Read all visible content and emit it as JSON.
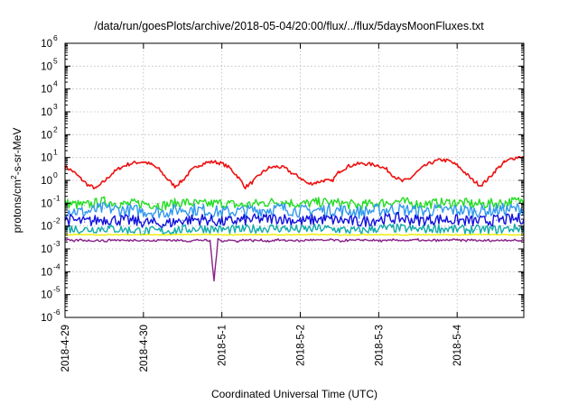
{
  "chart_data": {
    "type": "line",
    "title": "/data/run/goesPlots/archive/2018-05-04/20:00/flux/../flux/5daysMoonFluxes.txt",
    "xlabel": "Coordinated Universal Time (UTC)",
    "ylabel": "protons/cm²-s-sr-MeV",
    "yscale": "log",
    "ylim": [
      1e-06,
      1000000.0
    ],
    "xlim": [
      0,
      5.85
    ],
    "grid": true,
    "legend": "none",
    "x_ticks": [
      {
        "x": 0,
        "label": "2018-4-29"
      },
      {
        "x": 1,
        "label": "2018-4-30"
      },
      {
        "x": 2,
        "label": "2018-5-1"
      },
      {
        "x": 3,
        "label": "2018-5-2"
      },
      {
        "x": 4,
        "label": "2018-5-3"
      },
      {
        "x": 5,
        "label": "2018-5-4"
      }
    ],
    "y_ticks": [
      {
        "exp": 6,
        "label": "10",
        "sup": "6"
      },
      {
        "exp": 5,
        "label": "10",
        "sup": "5"
      },
      {
        "exp": 4,
        "label": "10",
        "sup": "4"
      },
      {
        "exp": 3,
        "label": "10",
        "sup": "3"
      },
      {
        "exp": 2,
        "label": "10",
        "sup": "2"
      },
      {
        "exp": 1,
        "label": "10",
        "sup": "1"
      },
      {
        "exp": 0,
        "label": "10",
        "sup": "0"
      },
      {
        "exp": -1,
        "label": "10",
        "sup": "-1"
      },
      {
        "exp": -2,
        "label": "10",
        "sup": "-2"
      },
      {
        "exp": -3,
        "label": "10",
        "sup": "-3"
      },
      {
        "exp": -4,
        "label": "10",
        "sup": "-4"
      },
      {
        "exp": -5,
        "label": "10",
        "sup": "-5"
      },
      {
        "exp": -6,
        "label": "10",
        "sup": "-6"
      }
    ],
    "series": [
      {
        "color": "#ee1111",
        "x": [
          0,
          0.1,
          0.2,
          0.3,
          0.4,
          0.5,
          0.6,
          0.7,
          0.8,
          0.9,
          1.0,
          1.1,
          1.2,
          1.3,
          1.4,
          1.5,
          1.6,
          1.7,
          1.8,
          1.9,
          2.0,
          2.1,
          2.2,
          2.3,
          2.4,
          2.5,
          2.6,
          2.7,
          2.8,
          2.9,
          3.0,
          3.1,
          3.2,
          3.3,
          3.4,
          3.5,
          3.6,
          3.7,
          3.8,
          3.9,
          4.0,
          4.1,
          4.2,
          4.3,
          4.4,
          4.5,
          4.6,
          4.7,
          4.8,
          4.9,
          5.0,
          5.1,
          5.2,
          5.3,
          5.4,
          5.5,
          5.6,
          5.7,
          5.8,
          5.85
        ],
        "values": [
          4.0,
          2.5,
          1.2,
          0.6,
          0.45,
          0.9,
          2.0,
          3.5,
          5.0,
          6.0,
          6.5,
          5.0,
          3.0,
          1.2,
          0.55,
          1.0,
          2.5,
          4.5,
          6.0,
          6.5,
          5.5,
          3.5,
          1.5,
          0.5,
          0.9,
          2.0,
          3.5,
          4.0,
          3.5,
          2.0,
          1.3,
          0.7,
          0.8,
          1.0,
          0.9,
          2.5,
          4.0,
          5.0,
          5.5,
          5.0,
          4.5,
          3.0,
          1.5,
          0.9,
          1.2,
          2.5,
          4.5,
          6.5,
          8.0,
          7.0,
          4.5,
          2.2,
          1.0,
          0.6,
          1.2,
          3.0,
          6.0,
          9.0,
          11.0,
          10.0
        ]
      },
      {
        "color": "#22dd22",
        "x": [
          0,
          0.25,
          0.5,
          0.75,
          1.0,
          1.25,
          1.5,
          1.75,
          2.0,
          2.25,
          2.5,
          2.75,
          3.0,
          3.25,
          3.5,
          3.75,
          4.0,
          4.25,
          4.5,
          4.75,
          5.0,
          5.25,
          5.5,
          5.75,
          5.85
        ],
        "values": [
          0.1,
          0.08,
          0.12,
          0.09,
          0.1,
          0.08,
          0.11,
          0.09,
          0.1,
          0.08,
          0.1,
          0.12,
          0.09,
          0.11,
          0.1,
          0.08,
          0.1,
          0.12,
          0.09,
          0.1,
          0.11,
          0.09,
          0.1,
          0.12,
          0.13
        ]
      },
      {
        "color": "#3399ee",
        "x": [
          0,
          0.25,
          0.5,
          0.75,
          1.0,
          1.25,
          1.5,
          1.75,
          2.0,
          2.25,
          2.5,
          2.75,
          3.0,
          3.25,
          3.5,
          3.75,
          4.0,
          4.25,
          4.5,
          4.75,
          5.0,
          5.25,
          5.5,
          5.75,
          5.85
        ],
        "values": [
          0.05,
          0.04,
          0.06,
          0.05,
          0.045,
          0.04,
          0.055,
          0.05,
          0.04,
          0.045,
          0.05,
          0.06,
          0.045,
          0.05,
          0.05,
          0.04,
          0.05,
          0.055,
          0.045,
          0.05,
          0.05,
          0.045,
          0.05,
          0.055,
          0.06
        ]
      },
      {
        "color": "#1111dd",
        "x": [
          0,
          0.25,
          0.5,
          0.75,
          1.0,
          1.25,
          1.5,
          1.75,
          2.0,
          2.25,
          2.5,
          2.75,
          3.0,
          3.25,
          3.5,
          3.75,
          4.0,
          4.25,
          4.5,
          4.75,
          5.0,
          5.25,
          5.5,
          5.75,
          5.85
        ],
        "values": [
          0.02,
          0.015,
          0.02,
          0.018,
          0.015,
          0.012,
          0.018,
          0.02,
          0.015,
          0.018,
          0.02,
          0.022,
          0.016,
          0.02,
          0.018,
          0.015,
          0.02,
          0.022,
          0.018,
          0.02,
          0.018,
          0.016,
          0.018,
          0.02,
          0.022
        ]
      },
      {
        "color": "#11aaaa",
        "x": [
          0,
          0.25,
          0.5,
          0.75,
          1.0,
          1.25,
          1.5,
          1.75,
          2.0,
          2.25,
          2.5,
          2.75,
          3.0,
          3.25,
          3.5,
          3.75,
          4.0,
          4.25,
          4.5,
          4.75,
          5.0,
          5.25,
          5.5,
          5.75,
          5.85
        ],
        "values": [
          0.008,
          0.007,
          0.008,
          0.007,
          0.006,
          0.006,
          0.007,
          0.008,
          0.007,
          0.007,
          0.008,
          0.008,
          0.007,
          0.008,
          0.007,
          0.006,
          0.008,
          0.008,
          0.007,
          0.008,
          0.007,
          0.007,
          0.007,
          0.008,
          0.008
        ]
      },
      {
        "color": "#eeee00",
        "x": [
          0,
          0.25,
          0.5,
          0.75,
          1.0,
          1.25,
          1.5,
          1.75,
          2.0,
          2.25,
          2.5,
          2.75,
          3.0,
          3.25,
          3.5,
          3.75,
          4.0,
          4.25,
          4.5,
          4.75,
          5.0,
          5.25,
          5.5,
          5.75,
          5.85
        ],
        "values": [
          0.0042,
          0.0042,
          0.0041,
          0.0042,
          0.0042,
          0.0041,
          0.0042,
          0.0042,
          0.0041,
          0.0042,
          0.0042,
          0.0041,
          0.0042,
          0.0042,
          0.0041,
          0.0042,
          0.0042,
          0.0041,
          0.0042,
          0.0042,
          0.0041,
          0.0042,
          0.0042,
          0.0041,
          0.0042
        ]
      },
      {
        "color": "#882288",
        "x": [
          0,
          0.1,
          0.2,
          0.3,
          0.4,
          0.5,
          0.6,
          0.7,
          0.8,
          0.9,
          1.0,
          1.1,
          1.2,
          1.3,
          1.4,
          1.5,
          1.6,
          1.7,
          1.8,
          1.85,
          1.9,
          1.95,
          2.0,
          2.1,
          2.2,
          2.3,
          2.4,
          2.5,
          2.6,
          2.7,
          2.8,
          2.9,
          3.0,
          3.1,
          3.2,
          3.3,
          3.4,
          3.5,
          3.6,
          3.7,
          3.8,
          3.9,
          4.0,
          4.1,
          4.2,
          4.3,
          4.4,
          4.5,
          4.6,
          4.7,
          4.8,
          4.9,
          5.0,
          5.1,
          5.2,
          5.3,
          5.4,
          5.5,
          5.6,
          5.7,
          5.8,
          5.85
        ],
        "values": [
          0.0025,
          0.0022,
          0.0025,
          0.0023,
          0.0024,
          0.0022,
          0.0025,
          0.0024,
          0.0023,
          0.0025,
          0.0024,
          0.0022,
          0.0024,
          0.0025,
          0.0023,
          0.0024,
          0.0022,
          0.0025,
          0.0023,
          0.0022,
          4e-05,
          0.0025,
          0.0023,
          0.0024,
          0.0022,
          0.0025,
          0.0023,
          0.0024,
          0.0022,
          0.0025,
          0.0023,
          0.0024,
          0.0022,
          0.0025,
          0.0024,
          0.0023,
          0.0025,
          0.0022,
          0.0024,
          0.0023,
          0.0025,
          0.0024,
          0.0023,
          0.0022,
          0.0025,
          0.0024,
          0.0023,
          0.0025,
          0.0022,
          0.0024,
          0.0023,
          0.0025,
          0.0024,
          0.0023,
          0.0025,
          0.0022,
          0.0024,
          0.0023,
          0.0025,
          0.0024,
          0.0023,
          0.0024
        ]
      }
    ]
  }
}
